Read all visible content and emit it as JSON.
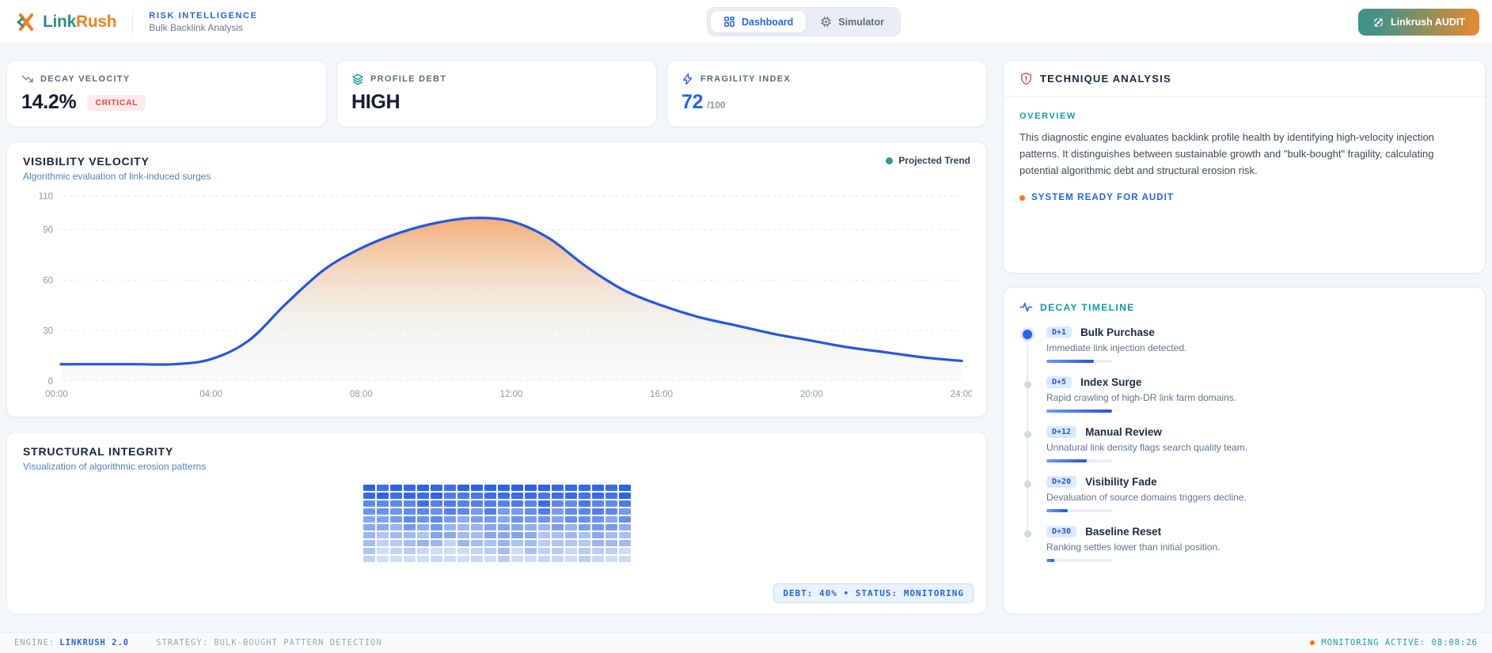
{
  "header": {
    "brand_primary": "Link",
    "brand_secondary": "Rush",
    "section_label": "RISK INTELLIGENCE",
    "section_sublabel": "Bulk Backlink Analysis",
    "tabs": [
      {
        "label": "Dashboard",
        "active": true
      },
      {
        "label": "Simulator",
        "active": false
      }
    ],
    "audit_button_label": "Linkrush AUDIT"
  },
  "stats": {
    "cards": [
      {
        "label": "DECAY VELOCITY",
        "value": "14.2%",
        "badge": "CRITICAL"
      },
      {
        "label": "PROFILE DEBT",
        "value": "HIGH"
      },
      {
        "label": "FRAGILITY INDEX",
        "value": "72",
        "suffix": "/100"
      }
    ]
  },
  "chart_data": [
    {
      "type": "area",
      "title": "VISIBILITY VELOCITY",
      "subtitle": "Algorithmic evaluation of link-induced surges",
      "legend": [
        "Projected Trend"
      ],
      "legend_position": "top-right",
      "x_hours": [
        0,
        1,
        2,
        3,
        4,
        5,
        6,
        7,
        8,
        9,
        10,
        11,
        12,
        13,
        14,
        15,
        16,
        17,
        18,
        19,
        20,
        21,
        22,
        23,
        24
      ],
      "series": [
        {
          "name": "Projected Trend",
          "values": [
            10,
            10,
            10,
            10,
            13,
            24,
            46,
            66,
            79,
            88,
            94,
            97,
            95,
            85,
            68,
            54,
            45,
            38,
            33,
            28,
            24,
            20,
            17,
            14,
            12
          ]
        }
      ],
      "xticks": [
        "00:00",
        "04:00",
        "08:00",
        "12:00",
        "16:00",
        "20:00",
        "24:00"
      ],
      "yticks": [
        0,
        30,
        60,
        90,
        110
      ],
      "ylim": [
        0,
        110
      ],
      "grid": "dashed-horizontal",
      "line_color": "#2457e0",
      "area_gradient_top": "#f49a52",
      "area_gradient_bottom": "#ecf1f0"
    },
    {
      "type": "heatmap",
      "title": "STRUCTURAL INTEGRITY",
      "subtitle": "Visualization of algorithmic erosion patterns",
      "rows": 10,
      "cols": 20,
      "pattern": "integrity fades from dark blue (top rows) to light blue (bottom rows) with random per-cell variation",
      "color_top": "#2d64e6",
      "color_bottom": "#ceddf8",
      "badge": "DEBT: 40% • STATUS: MONITORING"
    }
  ],
  "technique": {
    "title": "TECHNIQUE ANALYSIS",
    "section_label": "OVERVIEW",
    "body": "This diagnostic engine evaluates backlink profile health by identifying high-velocity injection patterns. It distinguishes between sustainable growth and \"bulk-bought\" fragility, calculating potential algorithmic debt and structural erosion risk.",
    "status": "SYSTEM READY FOR AUDIT"
  },
  "timeline": {
    "title": "DECAY TIMELINE",
    "items": [
      {
        "day": "D+1",
        "title": "Bulk Purchase",
        "desc": "Immediate link injection detected.",
        "progress": 72,
        "active": true
      },
      {
        "day": "D+5",
        "title": "Index Surge",
        "desc": "Rapid crawling of high-DR link farm domains.",
        "progress": 100,
        "active": false
      },
      {
        "day": "D+12",
        "title": "Manual Review",
        "desc": "Unnatural link density flags search quality team.",
        "progress": 62,
        "active": false
      },
      {
        "day": "D+20",
        "title": "Visibility Fade",
        "desc": "Devaluation of source domains triggers decline.",
        "progress": 32,
        "active": false
      },
      {
        "day": "D+30",
        "title": "Baseline Reset",
        "desc": "Ranking settles lower than initial position.",
        "progress": 12,
        "active": false
      }
    ]
  },
  "footer": {
    "engine_label": "ENGINE:",
    "engine_value": "LINKRUSH 2.0",
    "strategy": "STRATEGY: BULK-BOUGHT PATTERN DETECTION",
    "monitoring": "MONITORING ACTIVE: 08:08:26"
  }
}
